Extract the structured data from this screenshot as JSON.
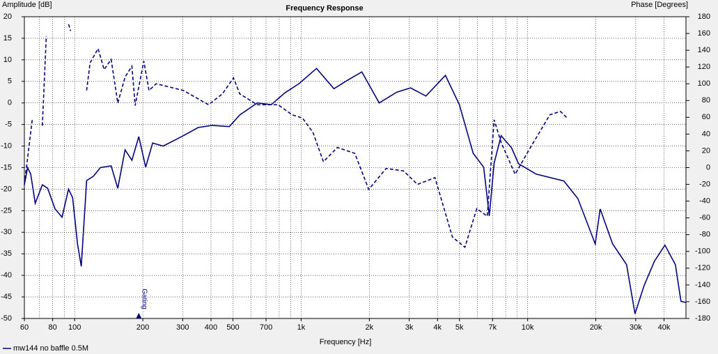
{
  "chart_data": {
    "type": "line",
    "title": "Frequency Response",
    "y_label": "Amplitude [dB]",
    "y2_label": "Phase [Degrees]",
    "x_label": "Frequency [Hz]",
    "legend": "mw144 no baffle 0.5M",
    "annotation": "Gating",
    "annotation_x": 192,
    "log_x": true,
    "grid": true,
    "xlim": [
      60,
      50000
    ],
    "xticks": [
      60,
      80,
      100,
      200,
      300,
      400,
      500,
      700,
      {
        "value": 1000,
        "label": "1k"
      },
      {
        "value": 2000,
        "label": "2k"
      },
      {
        "value": 3000,
        "label": "3k"
      },
      {
        "value": 4000,
        "label": "4k"
      },
      {
        "value": 5000,
        "label": "5k"
      },
      {
        "value": 7000,
        "label": "7k"
      },
      {
        "value": 10000,
        "label": "10k"
      },
      {
        "value": 20000,
        "label": "20k"
      },
      {
        "value": 30000,
        "label": "30k"
      },
      {
        "value": 40000,
        "label": "40k"
      }
    ],
    "xgrid_minor": [
      70,
      90,
      600,
      800,
      900,
      6000,
      8000,
      9000
    ],
    "ylim": [
      -50,
      20
    ],
    "yticks": [
      20,
      15,
      10,
      5,
      0,
      -5,
      -10,
      -15,
      -20,
      -25,
      -30,
      -35,
      -40,
      -45,
      -50
    ],
    "y2lim": [
      -180,
      180
    ],
    "y2ticks": [
      180,
      160,
      140,
      120,
      100,
      80,
      60,
      40,
      20,
      0,
      -20,
      -40,
      -60,
      -80,
      -100,
      -120,
      -140,
      -160,
      -180
    ],
    "series": [
      {
        "color": "#000080",
        "dashed": false,
        "axis": "y",
        "x": [
          60,
          62,
          64,
          67,
          72,
          76,
          82,
          88,
          94,
          98,
          103,
          107,
          113,
          121,
          130,
          145,
          155,
          167,
          179,
          192,
          206,
          221,
          246,
          302,
          351,
          404,
          482,
          536,
          640,
          738,
          850,
          980,
          1169,
          1396,
          1607,
          1854,
          2212,
          2641,
          3041,
          3555,
          4335,
          4993,
          5750,
          6396,
          6770,
          7110,
          7640,
          8490,
          9120,
          10890,
          14450,
          16660,
          19880,
          20900,
          23720,
          27340,
          29780,
          32660,
          36310,
          40370,
          44890,
          47530,
          49900
        ],
        "values": [
          -19,
          -15,
          -16.5,
          -23.3,
          -19,
          -19.8,
          -24.6,
          -26.5,
          -20,
          -22,
          -32.7,
          -37.9,
          -18,
          -17,
          -15,
          -14.6,
          -19.8,
          -10.9,
          -13.3,
          -7.8,
          -14.9,
          -9.3,
          -10,
          -7.6,
          -5.7,
          -5.2,
          -5.5,
          -2.8,
          0,
          -0.4,
          2.4,
          4.5,
          8,
          3.3,
          5.3,
          7.2,
          0,
          2.5,
          3.5,
          1.6,
          6.4,
          -0.4,
          -11.7,
          -14.9,
          -26.2,
          -14,
          -7.6,
          -10.4,
          -14.1,
          -16.5,
          -18.1,
          -22.2,
          -32.7,
          -24.6,
          -32.7,
          -37.5,
          -48.9,
          -42.4,
          -36.7,
          -33,
          -37.5,
          -46,
          -46.3
        ]
      },
      {
        "color": "#000080",
        "dashed": true,
        "axis": "y2",
        "x": [
          60,
          65,
          null,
          72,
          75,
          null,
          94,
          96,
          null,
          113,
          117,
          127,
          135,
          145,
          155,
          167,
          179,
          185,
          202,
          213,
          229,
          302,
          390,
          449,
          503,
          536,
          640,
          791,
          912,
          1014,
          1128,
          1254,
          1445,
          1726,
          1988,
          2373,
          2833,
          3263,
          3898,
          4656,
          5287,
          5962,
          6636,
          7110,
          7640,
          8806,
          10140,
          12540,
          13950,
          14970
        ],
        "values": [
          -20,
          57,
          null,
          50,
          157,
          null,
          171,
          163,
          null,
          92,
          125,
          142,
          117,
          129,
          77,
          108,
          121,
          74,
          127,
          92,
          100,
          92,
          75,
          88,
          107,
          88,
          75,
          75,
          63,
          59,
          42,
          7,
          24,
          17,
          -26,
          -1,
          -4,
          -20,
          -12,
          -83,
          -95,
          -49,
          -58,
          57,
          30,
          -8,
          21,
          63,
          67,
          59
        ]
      }
    ]
  }
}
